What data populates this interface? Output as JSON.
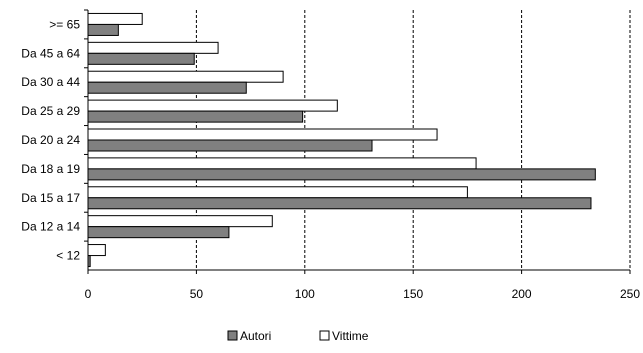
{
  "chart_data": {
    "type": "bar",
    "orientation": "horizontal",
    "categories": [
      "< 12",
      "Da 12 a 14",
      "Da 15 a 17",
      "Da 18 a 19",
      "Da 20 a 24",
      "Da 25 a 29",
      "Da 30 a 44",
      "Da 45 a 64",
      ">= 65"
    ],
    "series": [
      {
        "name": "Vittime",
        "values": [
          8,
          85,
          175,
          179,
          161,
          115,
          90,
          60,
          25
        ],
        "color": "#ffffff"
      },
      {
        "name": "Autori",
        "values": [
          1,
          65,
          232,
          234,
          131,
          99,
          73,
          49,
          14
        ],
        "color": "#808080"
      }
    ],
    "xlim": [
      0,
      250
    ],
    "xticks": [
      "0",
      "50",
      "100",
      "150",
      "200",
      "250"
    ],
    "grid": "vertical dashed",
    "legend": {
      "placement": "bottom",
      "entries": [
        "Autori",
        "Vittime"
      ]
    },
    "title": "",
    "xlabel": "",
    "ylabel": ""
  }
}
